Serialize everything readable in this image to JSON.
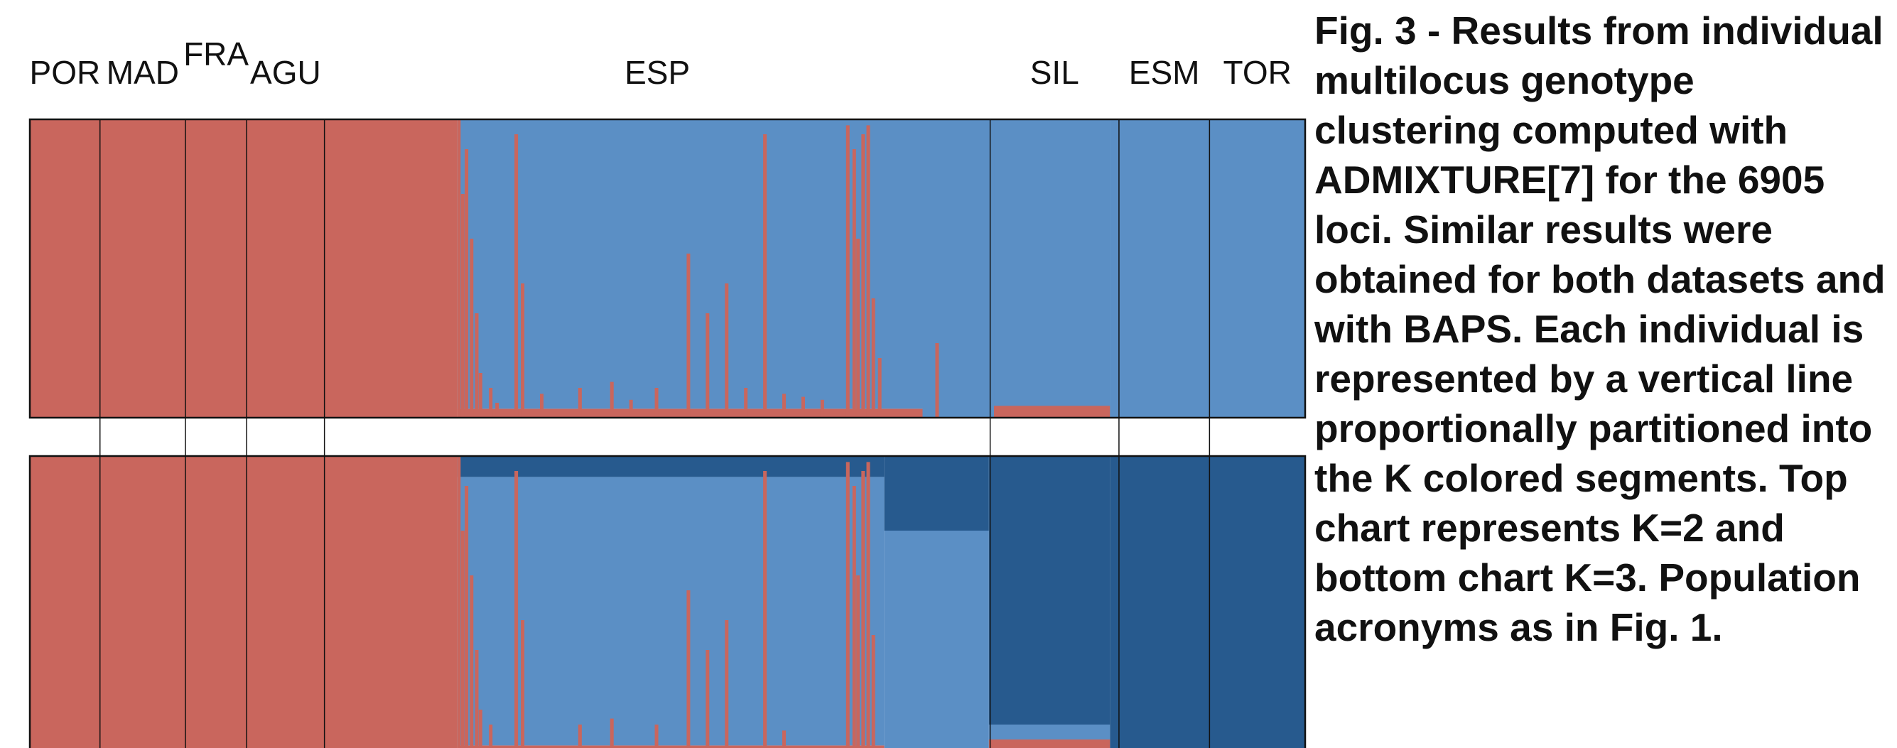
{
  "colors": {
    "cluster_red": "#C9665D",
    "cluster_light_blue": "#5B8FC5",
    "cluster_dark_blue": "#275A8E",
    "frame": "#111111"
  },
  "caption": {
    "fig_label": "Fig. 3 -",
    "text": "Results from individual multilocus genotype clustering computed with ADMIXTURE[7] for the 6905 loci. Similar results were obtained for both datasets and with BAPS. Each individual is represented by a vertical line proportionally partitioned into the K colored segments. Top chart represents K=2 and bottom chart K=3. Population acronyms as in Fig. 1."
  },
  "chart_data": {
    "type": "admixture",
    "populations": [
      {
        "code": "POR",
        "share": 0.055
      },
      {
        "code": "MAD",
        "share": 0.067
      },
      {
        "code": "FRA",
        "share": 0.048
      },
      {
        "code": "AGU",
        "share": 0.061
      },
      {
        "code": "ESP",
        "share": 0.522
      },
      {
        "code": "SIL",
        "share": 0.101
      },
      {
        "code": "ESM",
        "share": 0.071
      },
      {
        "code": "TOR",
        "share": 0.075
      }
    ],
    "panels": [
      {
        "k": 2,
        "clusters": [
          "cluster_red",
          "cluster_light_blue"
        ],
        "segments": [
          {
            "from": 0.0,
            "to": 0.335,
            "proportions": [
              1.0,
              0.0
            ]
          },
          {
            "from": 0.335,
            "to": 0.7,
            "proportions": [
              0.03,
              0.97
            ]
          },
          {
            "from": 0.7,
            "to": 0.847,
            "proportions": [
              0.0,
              1.0
            ]
          },
          {
            "from": 0.756,
            "to": 0.847,
            "proportions": [
              0.04,
              0.96
            ]
          },
          {
            "from": 0.847,
            "to": 1.0,
            "proportions": [
              0.0,
              1.0
            ]
          }
        ],
        "spikes": [
          {
            "x": 0.335,
            "red": 1.0
          },
          {
            "x": 0.338,
            "red": 0.75
          },
          {
            "x": 0.341,
            "red": 0.9
          },
          {
            "x": 0.345,
            "red": 0.6
          },
          {
            "x": 0.349,
            "red": 0.35
          },
          {
            "x": 0.352,
            "red": 0.15
          },
          {
            "x": 0.36,
            "red": 0.1
          },
          {
            "x": 0.365,
            "red": 0.05
          },
          {
            "x": 0.38,
            "red": 0.95
          },
          {
            "x": 0.385,
            "red": 0.45
          },
          {
            "x": 0.4,
            "red": 0.08
          },
          {
            "x": 0.43,
            "red": 0.1
          },
          {
            "x": 0.455,
            "red": 0.12
          },
          {
            "x": 0.47,
            "red": 0.06
          },
          {
            "x": 0.49,
            "red": 0.1
          },
          {
            "x": 0.515,
            "red": 0.55
          },
          {
            "x": 0.53,
            "red": 0.35
          },
          {
            "x": 0.545,
            "red": 0.45
          },
          {
            "x": 0.56,
            "red": 0.1
          },
          {
            "x": 0.575,
            "red": 0.95
          },
          {
            "x": 0.59,
            "red": 0.08
          },
          {
            "x": 0.605,
            "red": 0.07
          },
          {
            "x": 0.62,
            "red": 0.06
          },
          {
            "x": 0.64,
            "red": 0.98
          },
          {
            "x": 0.645,
            "red": 0.9
          },
          {
            "x": 0.648,
            "red": 0.6
          },
          {
            "x": 0.652,
            "red": 0.95
          },
          {
            "x": 0.656,
            "red": 0.98
          },
          {
            "x": 0.66,
            "red": 0.4
          },
          {
            "x": 0.665,
            "red": 0.2
          },
          {
            "x": 0.71,
            "red": 0.25
          }
        ]
      },
      {
        "k": 3,
        "clusters": [
          "cluster_red",
          "cluster_light_blue",
          "cluster_dark_blue"
        ],
        "segments": [
          {
            "from": 0.0,
            "to": 0.335,
            "proportions": [
              1.0,
              0.0,
              0.0
            ]
          },
          {
            "from": 0.335,
            "to": 0.67,
            "proportions": [
              0.03,
              0.9,
              0.07
            ]
          },
          {
            "from": 0.67,
            "to": 0.752,
            "proportions": [
              0.0,
              0.75,
              0.25
            ]
          },
          {
            "from": 0.752,
            "to": 0.847,
            "proportions": [
              0.05,
              0.05,
              0.9
            ]
          },
          {
            "from": 0.847,
            "to": 1.0,
            "proportions": [
              0.0,
              0.0,
              1.0
            ]
          }
        ],
        "spikes": [
          {
            "x": 0.335,
            "red": 1.0
          },
          {
            "x": 0.338,
            "red": 0.75
          },
          {
            "x": 0.341,
            "red": 0.9
          },
          {
            "x": 0.345,
            "red": 0.6
          },
          {
            "x": 0.349,
            "red": 0.35
          },
          {
            "x": 0.352,
            "red": 0.15
          },
          {
            "x": 0.36,
            "red": 0.1
          },
          {
            "x": 0.38,
            "red": 0.95
          },
          {
            "x": 0.385,
            "red": 0.45
          },
          {
            "x": 0.43,
            "red": 0.1
          },
          {
            "x": 0.455,
            "red": 0.12
          },
          {
            "x": 0.49,
            "red": 0.1
          },
          {
            "x": 0.515,
            "red": 0.55
          },
          {
            "x": 0.53,
            "red": 0.35
          },
          {
            "x": 0.545,
            "red": 0.45
          },
          {
            "x": 0.575,
            "red": 0.95
          },
          {
            "x": 0.59,
            "red": 0.08
          },
          {
            "x": 0.64,
            "red": 0.98
          },
          {
            "x": 0.645,
            "red": 0.9
          },
          {
            "x": 0.648,
            "red": 0.6
          },
          {
            "x": 0.652,
            "red": 0.95
          },
          {
            "x": 0.656,
            "red": 0.98
          },
          {
            "x": 0.66,
            "red": 0.4
          }
        ]
      }
    ]
  }
}
